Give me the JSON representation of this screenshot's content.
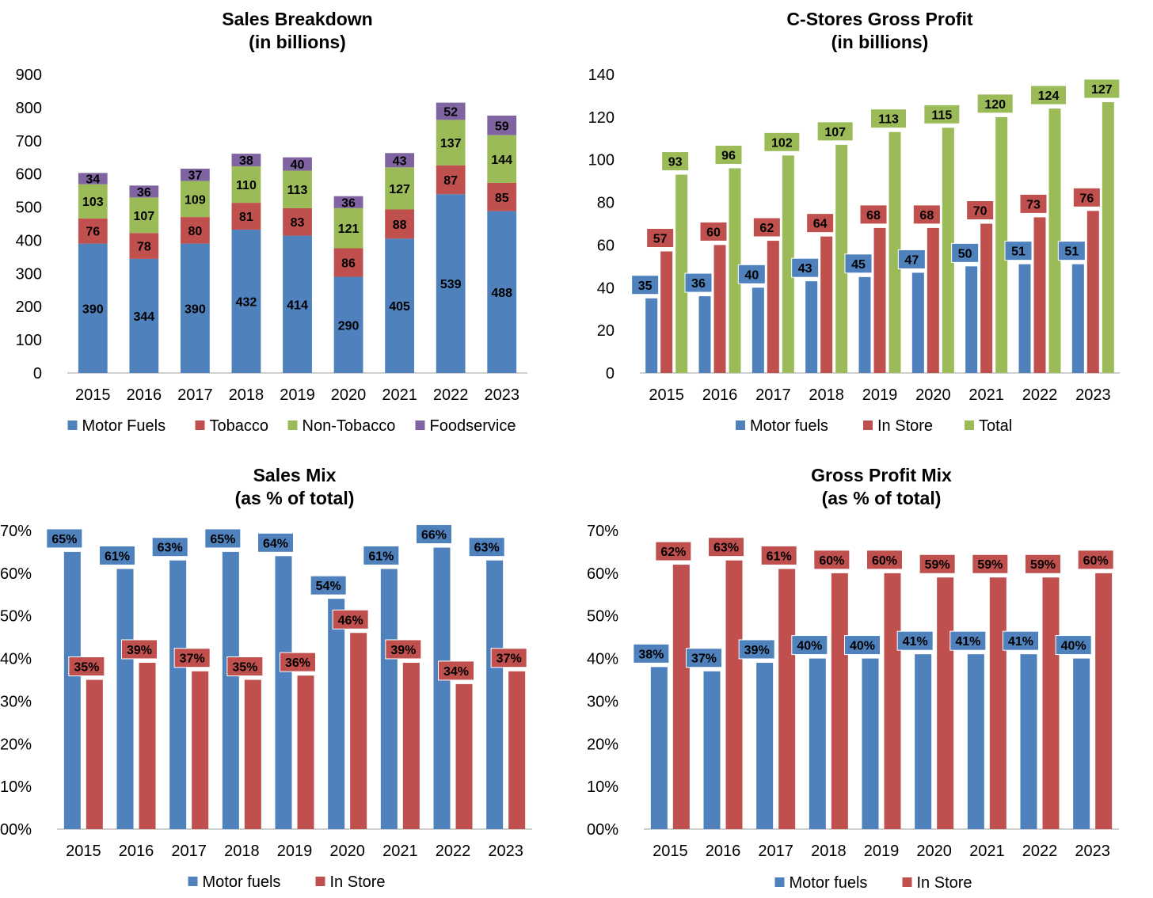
{
  "chart_data": [
    {
      "type": "bar",
      "stacked": true,
      "title": [
        "Sales Breakdown",
        "(in billions)"
      ],
      "categories": [
        "2015",
        "2016",
        "2017",
        "2018",
        "2019",
        "2020",
        "2021",
        "2022",
        "2023"
      ],
      "series": [
        {
          "name": "Motor Fuels",
          "color": "#4F81BD",
          "values": [
            390,
            344,
            390,
            432,
            414,
            290,
            405,
            539,
            488
          ]
        },
        {
          "name": "Tobacco",
          "color": "#C0504D",
          "values": [
            76,
            78,
            80,
            81,
            83,
            86,
            88,
            87,
            85
          ]
        },
        {
          "name": "Non-Tobacco",
          "color": "#9BBB59",
          "values": [
            103,
            107,
            109,
            110,
            113,
            121,
            127,
            137,
            144
          ]
        },
        {
          "name": "Foodservice",
          "color": "#8064A2",
          "values": [
            34,
            36,
            37,
            38,
            40,
            36,
            43,
            52,
            59
          ]
        }
      ],
      "ylim": [
        0,
        900
      ],
      "yticks": [
        "0",
        "100",
        "200",
        "300",
        "400",
        "500",
        "600",
        "700",
        "800",
        "900"
      ],
      "label_style": "inside",
      "legend": "bottom",
      "grid": false
    },
    {
      "type": "bar",
      "stacked": false,
      "title": [
        "C-Stores Gross Profit",
        "(in billions)"
      ],
      "categories": [
        "2015",
        "2016",
        "2017",
        "2018",
        "2019",
        "2020",
        "2021",
        "2022",
        "2023"
      ],
      "series": [
        {
          "name": "Motor fuels",
          "color": "#4F81BD",
          "values": [
            35,
            36,
            40,
            43,
            45,
            47,
            50,
            51,
            51
          ]
        },
        {
          "name": "In Store",
          "color": "#C0504D",
          "values": [
            57,
            60,
            62,
            64,
            68,
            68,
            70,
            73,
            76
          ]
        },
        {
          "name": "Total",
          "color": "#9BBB59",
          "values": [
            93,
            96,
            102,
            107,
            113,
            115,
            120,
            124,
            127
          ]
        }
      ],
      "ylim": [
        0,
        140
      ],
      "yticks": [
        "0",
        "20",
        "40",
        "60",
        "80",
        "100",
        "120",
        "140"
      ],
      "label_style": "boxed",
      "legend": "bottom",
      "grid": false
    },
    {
      "type": "bar",
      "stacked": false,
      "title": [
        "Sales Mix",
        "(as % of total)"
      ],
      "categories": [
        "2015",
        "2016",
        "2017",
        "2018",
        "2019",
        "2020",
        "2021",
        "2022",
        "2023"
      ],
      "series": [
        {
          "name": "Motor fuels",
          "color": "#4F81BD",
          "values": [
            65,
            61,
            63,
            65,
            64,
            54,
            61,
            66,
            63
          ],
          "labels": [
            "65%",
            "61%",
            "63%",
            "65%",
            "64%",
            "54%",
            "61%",
            "66%",
            "63%"
          ]
        },
        {
          "name": "In Store",
          "color": "#C0504D",
          "values": [
            35,
            39,
            37,
            35,
            36,
            46,
            39,
            34,
            37
          ],
          "labels": [
            "35%",
            "39%",
            "37%",
            "35%",
            "36%",
            "46%",
            "39%",
            "34%",
            "37%"
          ]
        }
      ],
      "ylim": [
        0,
        70
      ],
      "yticks": [
        "00%",
        "10%",
        "20%",
        "30%",
        "40%",
        "50%",
        "60%",
        "70%"
      ],
      "label_style": "boxed",
      "legend": "bottom",
      "grid": false
    },
    {
      "type": "bar",
      "stacked": false,
      "title": [
        "Gross Profit Mix",
        "(as % of total)"
      ],
      "categories": [
        "2015",
        "2016",
        "2017",
        "2018",
        "2019",
        "2020",
        "2021",
        "2022",
        "2023"
      ],
      "series": [
        {
          "name": "Motor fuels",
          "color": "#4F81BD",
          "values": [
            38,
            37,
            39,
            40,
            40,
            41,
            41,
            41,
            40
          ],
          "labels": [
            "38%",
            "37%",
            "39%",
            "40%",
            "40%",
            "41%",
            "41%",
            "41%",
            "40%"
          ]
        },
        {
          "name": "In Store",
          "color": "#C0504D",
          "values": [
            62,
            63,
            61,
            60,
            60,
            59,
            59,
            59,
            60
          ],
          "labels": [
            "62%",
            "63%",
            "61%",
            "60%",
            "60%",
            "59%",
            "59%",
            "59%",
            "60%"
          ]
        }
      ],
      "ylim": [
        0,
        70
      ],
      "yticks": [
        "00%",
        "10%",
        "20%",
        "30%",
        "40%",
        "50%",
        "60%",
        "70%"
      ],
      "label_style": "boxed",
      "legend": "bottom",
      "grid": false
    }
  ]
}
